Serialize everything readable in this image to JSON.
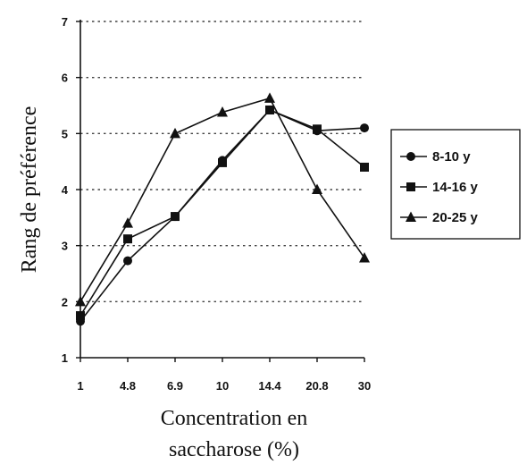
{
  "chart_data": {
    "type": "line",
    "title": "",
    "xlabel_lines": [
      "Concentration en",
      "saccharose (%)"
    ],
    "ylabel": "Rang de préférence",
    "categories": [
      "1",
      "4.8",
      "6.9",
      "10",
      "14.4",
      "20.8",
      "30"
    ],
    "ylim": [
      1,
      7
    ],
    "yticks": [
      1,
      2,
      3,
      4,
      5,
      6,
      7
    ],
    "grid": "horizontal dotted",
    "legend_position": "right",
    "series": [
      {
        "name": "8-10 y",
        "marker": "circle",
        "values": [
          1.65,
          2.73,
          3.52,
          4.52,
          5.42,
          5.05,
          5.1
        ]
      },
      {
        "name": "14-16 y",
        "marker": "square",
        "values": [
          1.75,
          3.12,
          3.52,
          4.48,
          5.42,
          5.08,
          4.4
        ]
      },
      {
        "name": "20-25 y",
        "marker": "triangle",
        "values": [
          2.0,
          3.4,
          5.0,
          5.38,
          5.63,
          4.0,
          2.78
        ]
      }
    ]
  }
}
